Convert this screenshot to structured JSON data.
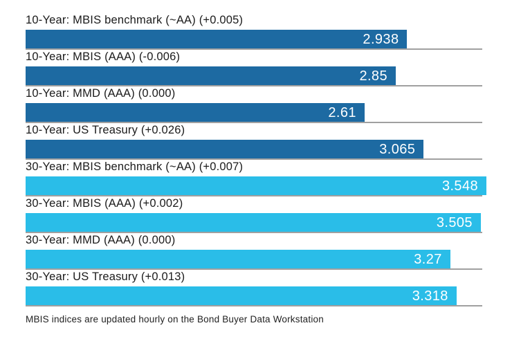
{
  "chart_data": {
    "type": "bar",
    "orientation": "horizontal",
    "title": "",
    "xlabel": "",
    "ylabel": "",
    "xlim": [
      0,
      3.548
    ],
    "grid": false,
    "legend": false,
    "value_label_position": "inside-right",
    "group_colors": {
      "10-Year": "#1d6aa2",
      "30-Year": "#2abde8"
    },
    "rows": [
      {
        "label": "10-Year: MBIS benchmark (~AA) (+0.005)",
        "value": 2.938,
        "display_value": "2.938",
        "group": "10-Year"
      },
      {
        "label": "10-Year: MBIS (AAA) (-0.006)",
        "value": 2.85,
        "display_value": "2.85",
        "group": "10-Year"
      },
      {
        "label": "10-Year: MMD (AAA) (0.000)",
        "value": 2.61,
        "display_value": "2.61",
        "group": "10-Year"
      },
      {
        "label": "10-Year: US Treasury (+0.026)",
        "value": 3.065,
        "display_value": "3.065",
        "group": "10-Year"
      },
      {
        "label": "30-Year: MBIS benchmark (~AA) (+0.007)",
        "value": 3.548,
        "display_value": "3.548",
        "group": "30-Year"
      },
      {
        "label": "30-Year: MBIS (AAA) (+0.002)",
        "value": 3.505,
        "display_value": "3.505",
        "group": "30-Year"
      },
      {
        "label": "30-Year: MMD (AAA) (0.000)",
        "value": 3.27,
        "display_value": "3.27",
        "group": "30-Year"
      },
      {
        "label": "30-Year: US Treasury (+0.013)",
        "value": 3.318,
        "display_value": "3.318",
        "group": "30-Year"
      }
    ]
  },
  "footer": {
    "note": "MBIS indices are updated hourly on the Bond Buyer Data Workstation"
  },
  "colors": {
    "dark_blue": "#1d6aa2",
    "light_blue": "#2abde8",
    "baseline_gray": "#a0a0a0",
    "label_text": "#1b1b1b",
    "value_text": "#ffffff",
    "background": "#ffffff"
  }
}
